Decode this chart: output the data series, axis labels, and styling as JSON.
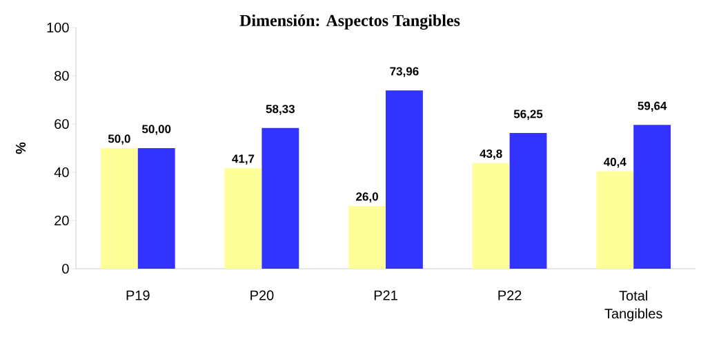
{
  "chart_data": {
    "type": "bar",
    "title": "Dimensión: Aspectos Tangibles",
    "ylabel": "%",
    "categories": [
      "P19",
      "P20",
      "P21",
      "P22",
      "Total Tangibles"
    ],
    "series": [
      {
        "color": "#ffff99",
        "values": [
          50.0,
          41.7,
          26.0,
          43.8,
          40.4
        ],
        "value_labels": [
          "50,0",
          "41,7",
          "26,0",
          "43,8",
          "40,4"
        ]
      },
      {
        "color": "#3333ff",
        "values": [
          50.0,
          58.33,
          73.96,
          56.25,
          59.64
        ],
        "value_labels": [
          "50,00",
          "58,33",
          "73,96",
          "56,25",
          "59,64"
        ]
      }
    ],
    "ylim": [
      0,
      100
    ],
    "yticks": [
      0,
      20,
      40,
      60,
      80,
      100
    ]
  }
}
